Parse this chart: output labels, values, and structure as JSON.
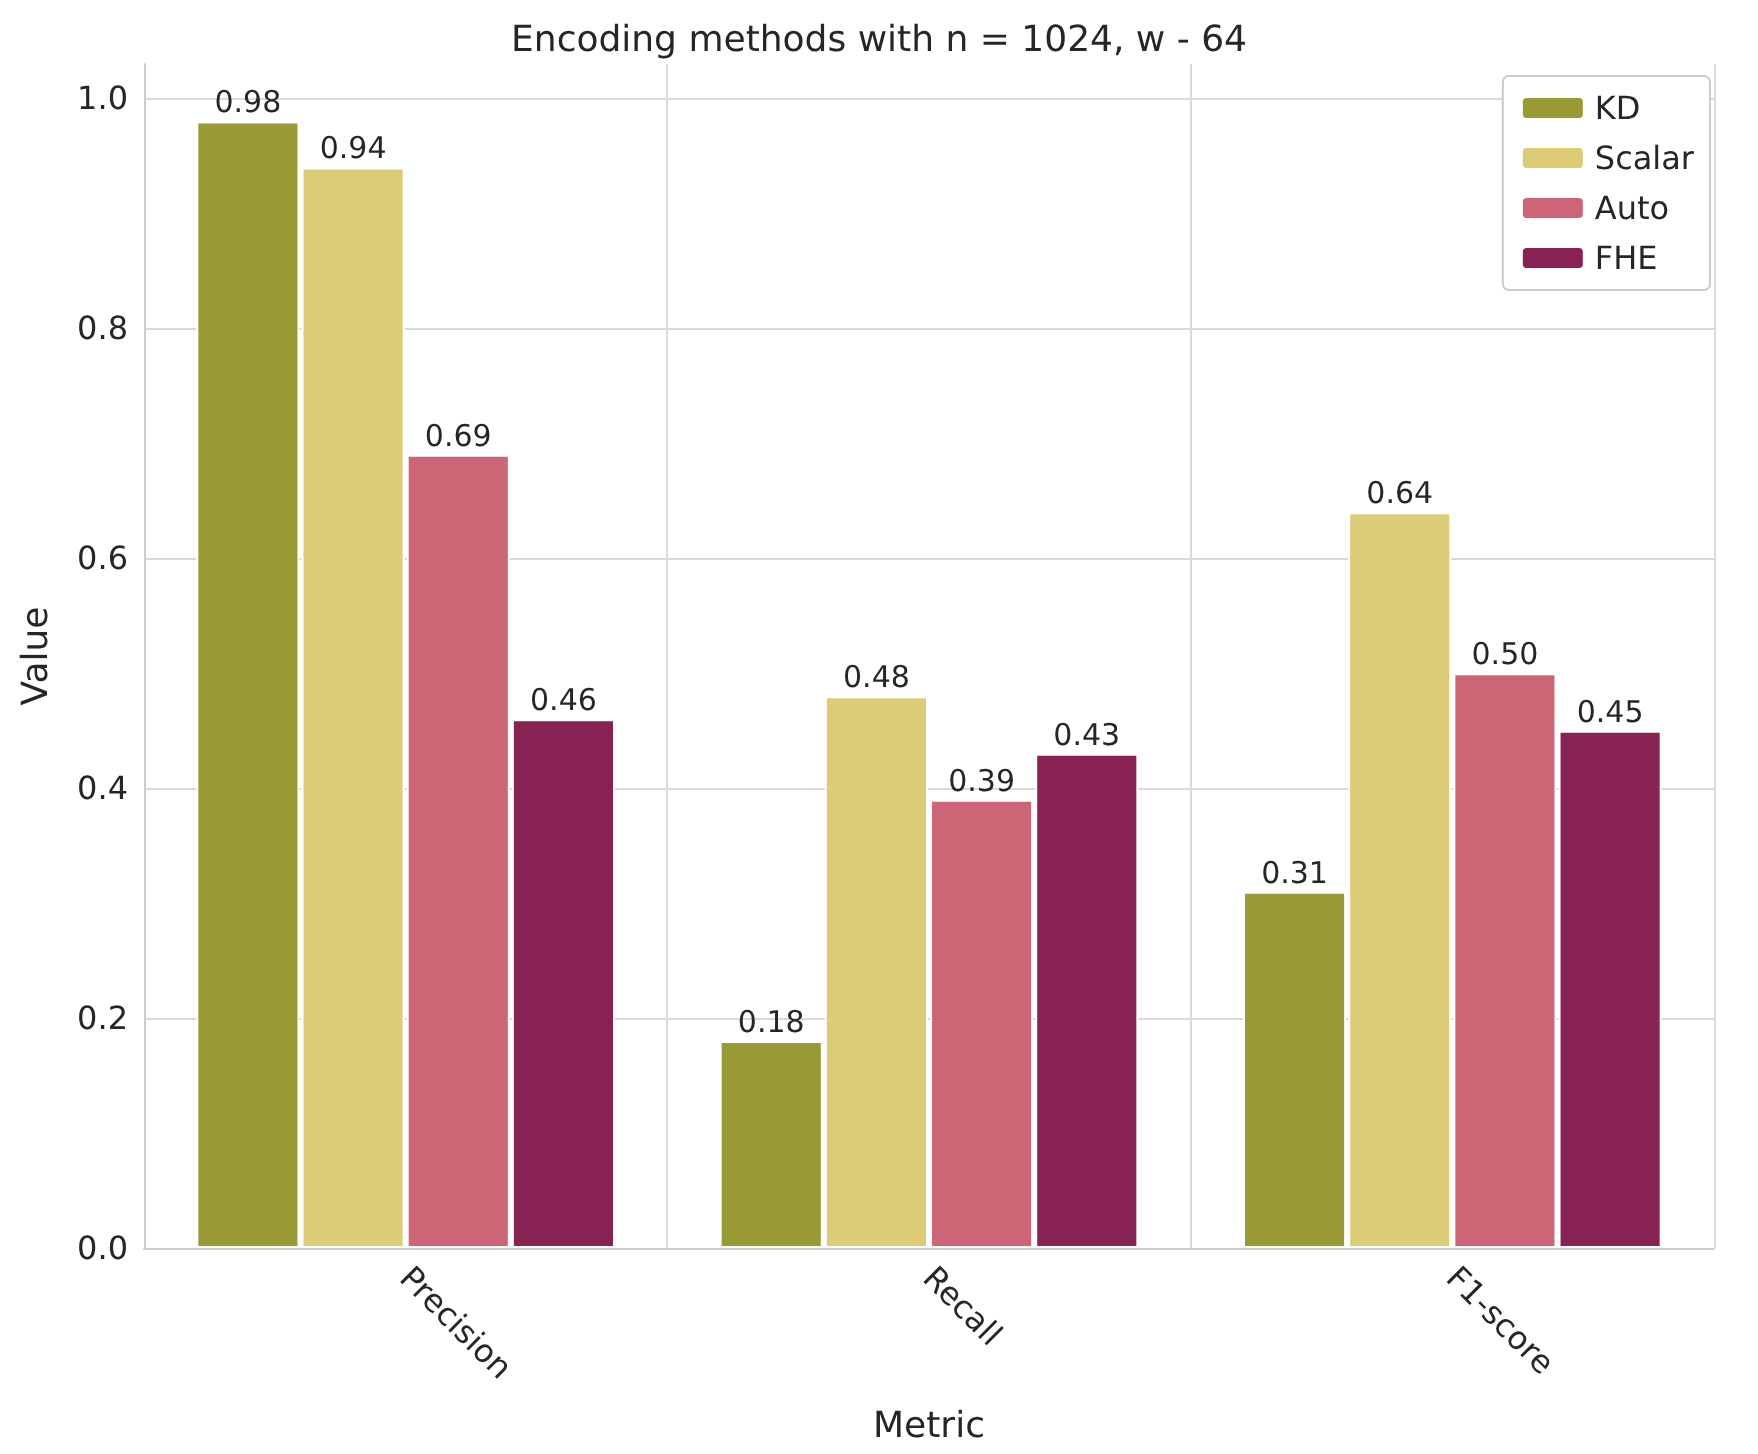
{
  "chart_data": {
    "type": "bar",
    "title": "Encoding methods with n = 1024, w - 64",
    "xlabel": "Metric",
    "ylabel": "Value",
    "categories": [
      "Precision",
      "Recall",
      "F1-score"
    ],
    "series": [
      {
        "name": "KD",
        "color": "#9a9a35",
        "values": [
          0.98,
          0.18,
          0.31
        ],
        "value_labels": [
          "0.98",
          "0.18",
          "0.31"
        ]
      },
      {
        "name": "Scalar",
        "color": "#dccb77",
        "values": [
          0.94,
          0.48,
          0.64
        ],
        "value_labels": [
          "0.94",
          "0.48",
          "0.64"
        ]
      },
      {
        "name": "Auto",
        "color": "#cc6677",
        "values": [
          0.69,
          0.39,
          0.5
        ],
        "value_labels": [
          "0.69",
          "0.39",
          "0.50"
        ]
      },
      {
        "name": "FHE",
        "color": "#882255",
        "values": [
          0.46,
          0.43,
          0.45
        ],
        "value_labels": [
          "0.46",
          "0.43",
          "0.45"
        ]
      }
    ],
    "ylim": [
      0,
      1.03
    ],
    "yticks": [
      {
        "value": 0,
        "label": "0.0"
      },
      {
        "value": 0.2,
        "label": "0.2"
      },
      {
        "value": 0.4,
        "label": "0.4"
      },
      {
        "value": 0.6,
        "label": "0.6"
      },
      {
        "value": 0.8,
        "label": "0.8"
      },
      {
        "value": 1,
        "label": "1.0"
      }
    ],
    "grid": true,
    "legend": "top right"
  }
}
